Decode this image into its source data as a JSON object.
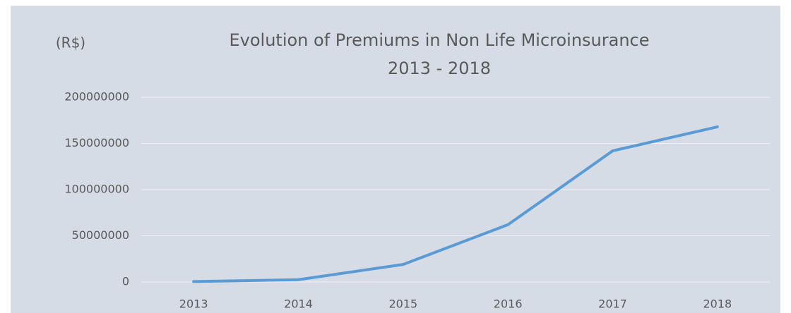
{
  "chart_data": {
    "type": "line",
    "title": "Evolution of Premiums in Non Life Microinsurance",
    "subtitle": "2013 - 2018",
    "y_label": "(R$)",
    "categories": [
      "2013",
      "2014",
      "2015",
      "2016",
      "2017",
      "2018"
    ],
    "series": [
      {
        "name": "Premiums",
        "color": "#5b9bd5",
        "values": [
          500000,
          2500000,
          19000000,
          62000000,
          142000000,
          168000000
        ]
      }
    ],
    "ylim": [
      0,
      200000000
    ],
    "yticks": [
      0,
      50000000,
      100000000,
      150000000,
      200000000
    ],
    "grid": true
  }
}
